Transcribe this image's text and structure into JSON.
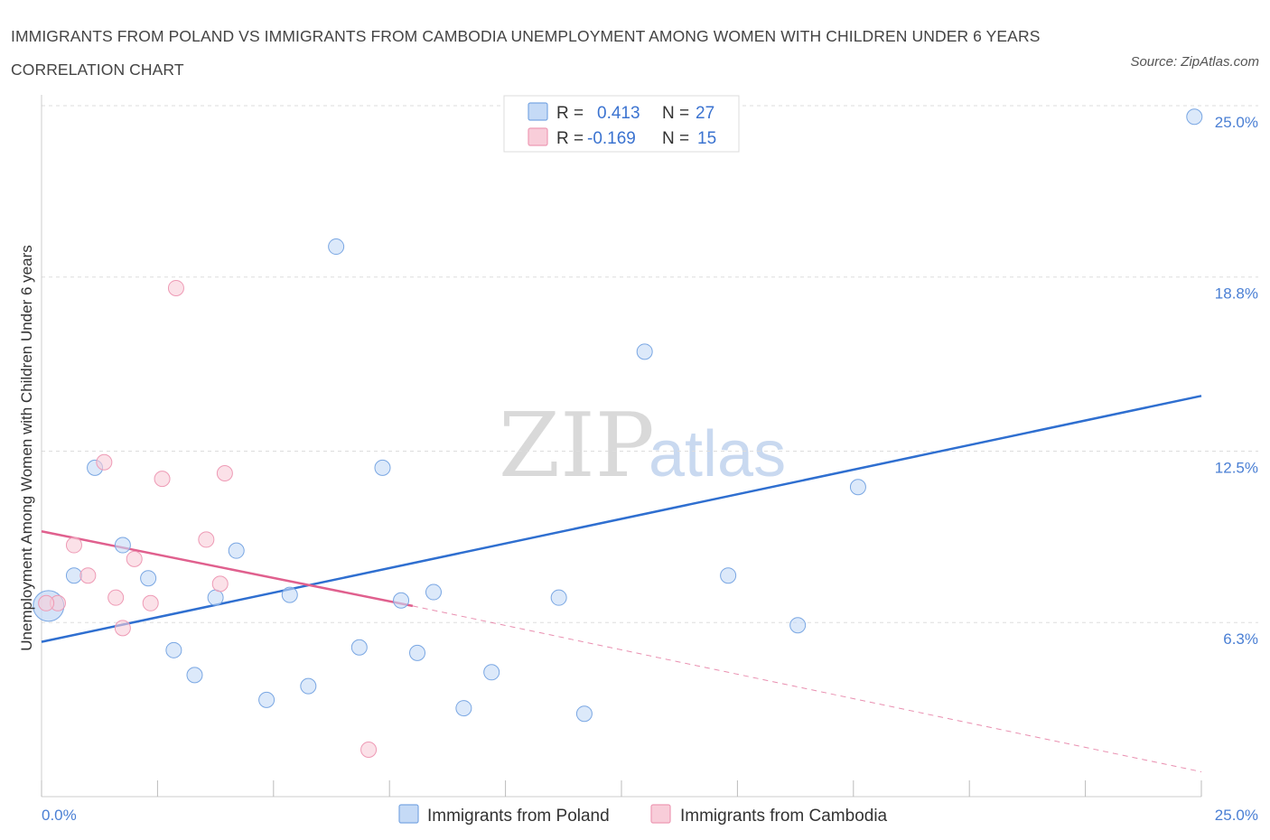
{
  "title": "IMMIGRANTS FROM POLAND VS IMMIGRANTS FROM CAMBODIA UNEMPLOYMENT AMONG WOMEN WITH CHILDREN UNDER 6 YEARS CORRELATION CHART",
  "source": "Source: ZipAtlas.com",
  "watermark": {
    "zip": "ZIP",
    "atlas": "atlas"
  },
  "colors": {
    "poland_fill": "#c5daf6",
    "poland_stroke": "#7aa7e3",
    "poland_line": "#2f6fd0",
    "cambodia_fill": "#f8cdd9",
    "cambodia_stroke": "#ee9ab5",
    "cambodia_line": "#e0608e",
    "grid": "#dddddd",
    "tick_label": "#4a7fd4"
  },
  "legend": {
    "r_label": "R =",
    "n_label": "N =",
    "poland_r": "0.413",
    "poland_n": "27",
    "cambodia_r": "-0.169",
    "cambodia_n": "15"
  },
  "chart_data": {
    "type": "scatter",
    "title": "IMMIGRANTS FROM POLAND VS IMMIGRANTS FROM CAMBODIA UNEMPLOYMENT AMONG WOMEN WITH CHILDREN UNDER 6 YEARS CORRELATION CHART",
    "xlabel": "",
    "ylabel": "Unemployment Among Women with Children Under 6 years",
    "xlim": [
      0,
      25
    ],
    "ylim": [
      0,
      25
    ],
    "x_tick_labels": [
      "0.0%",
      "25.0%"
    ],
    "y_ticks": [
      6.3,
      12.5,
      18.8,
      25.0
    ],
    "y_tick_labels": [
      "6.3%",
      "12.5%",
      "18.8%",
      "25.0%"
    ],
    "grid": true,
    "legend_position": "bottom-center",
    "series": [
      {
        "name": "Immigrants from Poland",
        "r": 0.413,
        "n": 27,
        "points": [
          [
            0.15,
            6.9
          ],
          [
            0.7,
            8.0
          ],
          [
            1.15,
            11.9
          ],
          [
            1.75,
            9.1
          ],
          [
            2.3,
            7.9
          ],
          [
            2.85,
            5.3
          ],
          [
            3.3,
            4.4
          ],
          [
            3.75,
            7.2
          ],
          [
            4.2,
            8.9
          ],
          [
            4.85,
            3.5
          ],
          [
            5.35,
            7.3
          ],
          [
            5.75,
            4.0
          ],
          [
            6.35,
            19.9
          ],
          [
            6.85,
            5.4
          ],
          [
            7.35,
            11.9
          ],
          [
            7.75,
            7.1
          ],
          [
            8.1,
            5.2
          ],
          [
            8.45,
            7.4
          ],
          [
            9.1,
            3.2
          ],
          [
            9.7,
            4.5
          ],
          [
            11.15,
            7.2
          ],
          [
            11.7,
            3.0
          ],
          [
            13.0,
            16.1
          ],
          [
            14.8,
            8.0
          ],
          [
            16.3,
            6.2
          ],
          [
            17.6,
            11.2
          ],
          [
            24.85,
            24.6
          ]
        ],
        "trend": {
          "x0": 0,
          "y0": 5.6,
          "x1": 25,
          "y1": 14.5
        }
      },
      {
        "name": "Immigrants from Cambodia",
        "r": -0.169,
        "n": 15,
        "points": [
          [
            0.35,
            7.0
          ],
          [
            0.7,
            9.1
          ],
          [
            1.0,
            8.0
          ],
          [
            1.35,
            12.1
          ],
          [
            1.6,
            7.2
          ],
          [
            1.75,
            6.1
          ],
          [
            2.0,
            8.6
          ],
          [
            2.35,
            7.0
          ],
          [
            2.6,
            11.5
          ],
          [
            2.9,
            18.4
          ],
          [
            3.55,
            9.3
          ],
          [
            3.85,
            7.7
          ],
          [
            3.95,
            11.7
          ],
          [
            7.05,
            1.7
          ],
          [
            0.1,
            7.0
          ]
        ],
        "trend": {
          "x0": 0,
          "y0": 9.6,
          "x1": 8.0,
          "y1": 6.9,
          "dashed_to_x": 25,
          "dashed_to_y": 0.9
        }
      }
    ]
  }
}
